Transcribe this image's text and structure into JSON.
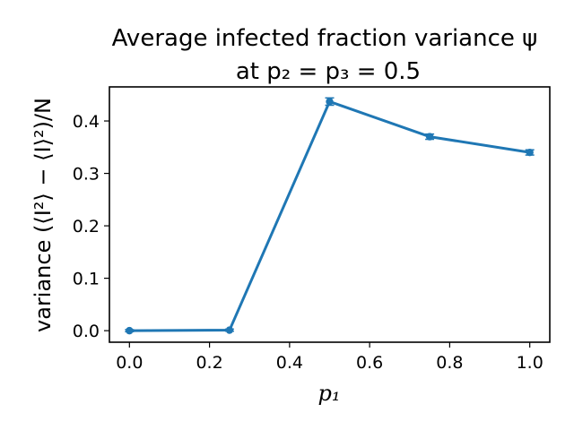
{
  "chart_data": {
    "type": "line",
    "title_line1": "Average infected fraction variance ψ",
    "title_line2": "at p₂ = p₃ = 0.5",
    "xlabel": "p₁",
    "ylabel": "variance (⟨I²⟩ − ⟨I⟩²)/N",
    "x": [
      0.0,
      0.25,
      0.5,
      0.75,
      1.0
    ],
    "series": [
      {
        "values": [
          0.0,
          0.001,
          0.437,
          0.37,
          0.34
        ],
        "errors": [
          0.002,
          0.002,
          0.007,
          0.005,
          0.005
        ],
        "color": "#1f77b4",
        "marker": "circle"
      }
    ],
    "xlim": [
      -0.05,
      1.05
    ],
    "ylim": [
      -0.022,
      0.465
    ],
    "xticks": [
      0.0,
      0.2,
      0.4,
      0.6,
      0.8,
      1.0
    ],
    "xtick_labels": [
      "0.0",
      "0.2",
      "0.4",
      "0.6",
      "0.8",
      "1.0"
    ],
    "yticks": [
      0.0,
      0.1,
      0.2,
      0.3,
      0.4
    ],
    "ytick_labels": [
      "0.0",
      "0.1",
      "0.2",
      "0.3",
      "0.4"
    ],
    "grid": false,
    "legend": "none"
  }
}
